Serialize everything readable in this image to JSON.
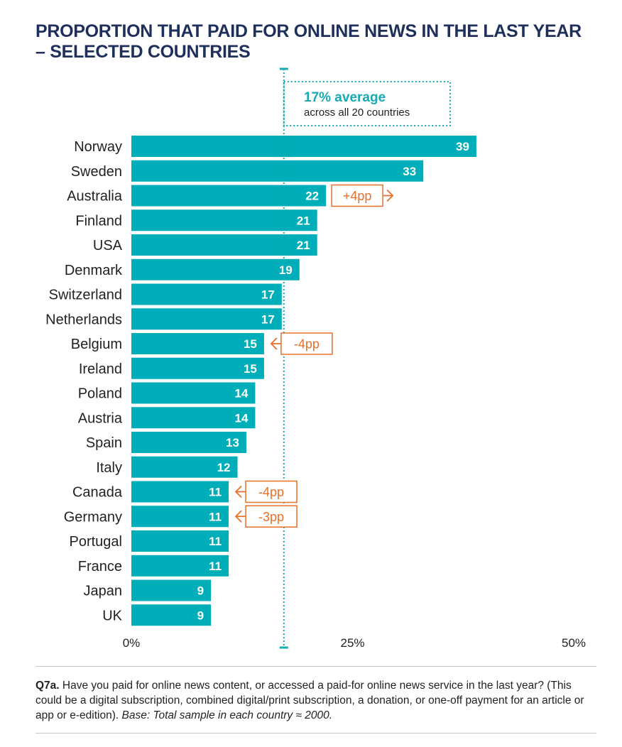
{
  "title": {
    "line1": "PROPORTION THAT PAID FOR ONLINE NEWS IN THE LAST YEAR",
    "line2": "– SELECTED COUNTRIES"
  },
  "average": {
    "value_text": "17% average",
    "detail_text": "across all 20 countries",
    "value": 17
  },
  "chart_data": {
    "type": "bar",
    "orientation": "horizontal",
    "categories": [
      "Norway",
      "Sweden",
      "Australia",
      "Finland",
      "USA",
      "Denmark",
      "Switzerland",
      "Netherlands",
      "Belgium",
      "Ireland",
      "Poland",
      "Austria",
      "Spain",
      "Italy",
      "Canada",
      "Germany",
      "Portugal",
      "France",
      "Japan",
      "UK"
    ],
    "values": [
      39,
      33,
      22,
      21,
      21,
      19,
      17,
      17,
      15,
      15,
      14,
      14,
      13,
      12,
      11,
      11,
      11,
      11,
      9,
      9
    ],
    "xlim": [
      0,
      50
    ],
    "x_ticks": [
      "0%",
      "25%",
      "50%"
    ],
    "x_tick_values": [
      0,
      25,
      50
    ],
    "bar_color": "#00aeb9",
    "average_line_color": "#17aab5",
    "annotations": [
      {
        "category": "Australia",
        "text": "+4pp",
        "direction": "up"
      },
      {
        "category": "Belgium",
        "text": "-4pp",
        "direction": "down"
      },
      {
        "category": "Canada",
        "text": "-4pp",
        "direction": "down"
      },
      {
        "category": "Germany",
        "text": "-3pp",
        "direction": "down"
      }
    ],
    "annotation_color": "#e8702a"
  },
  "footnote": {
    "question_label": "Q7a.",
    "question_text": " Have you paid for online news content, or accessed a paid-for online news service in the last year? (This could be a digital subscription, combined digital/print subscription, a donation, or one-off payment for an article or app or e-edition). ",
    "base_text": "Base: Total sample in each country ≈ 2000."
  }
}
